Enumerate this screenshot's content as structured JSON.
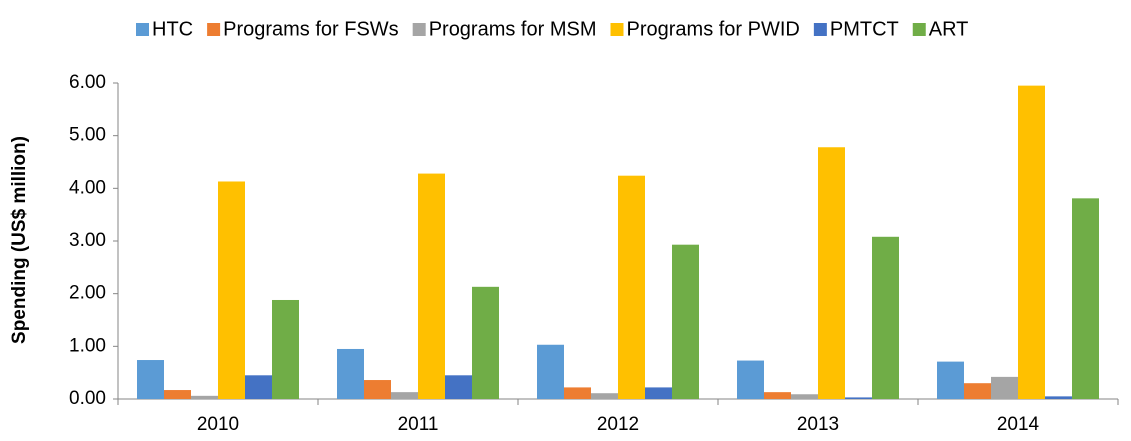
{
  "chart_data": {
    "type": "bar",
    "y_label": "Spending (US$ million)",
    "categories": [
      "2010",
      "2011",
      "2012",
      "2013",
      "2014"
    ],
    "series": [
      {
        "name": "HTC",
        "color": "#5b9bd5",
        "values": [
          0.74,
          0.95,
          1.03,
          0.73,
          0.71
        ]
      },
      {
        "name": "Programs for FSWs",
        "color": "#ed7d31",
        "values": [
          0.17,
          0.36,
          0.22,
          0.13,
          0.3
        ]
      },
      {
        "name": "Programs for MSM",
        "color": "#a5a5a5",
        "values": [
          0.06,
          0.13,
          0.11,
          0.09,
          0.42
        ]
      },
      {
        "name": "Programs for PWID",
        "color": "#ffc000",
        "values": [
          4.13,
          4.28,
          4.24,
          4.78,
          5.95
        ]
      },
      {
        "name": "PMTCT",
        "color": "#4472c4",
        "values": [
          0.45,
          0.45,
          0.22,
          0.03,
          0.05
        ]
      },
      {
        "name": "ART",
        "color": "#70ad47",
        "values": [
          1.88,
          2.13,
          2.93,
          3.08,
          3.81
        ]
      }
    ],
    "ylim": [
      0,
      6
    ],
    "yticks": [
      {
        "value": 0,
        "label": "0.00"
      },
      {
        "value": 1,
        "label": "1.00"
      },
      {
        "value": 2,
        "label": "2.00"
      },
      {
        "value": 3,
        "label": "3.00"
      },
      {
        "value": 4,
        "label": "4.00"
      },
      {
        "value": 5,
        "label": "5.00"
      },
      {
        "value": 6,
        "label": "6.00"
      }
    ],
    "legend": "top"
  }
}
